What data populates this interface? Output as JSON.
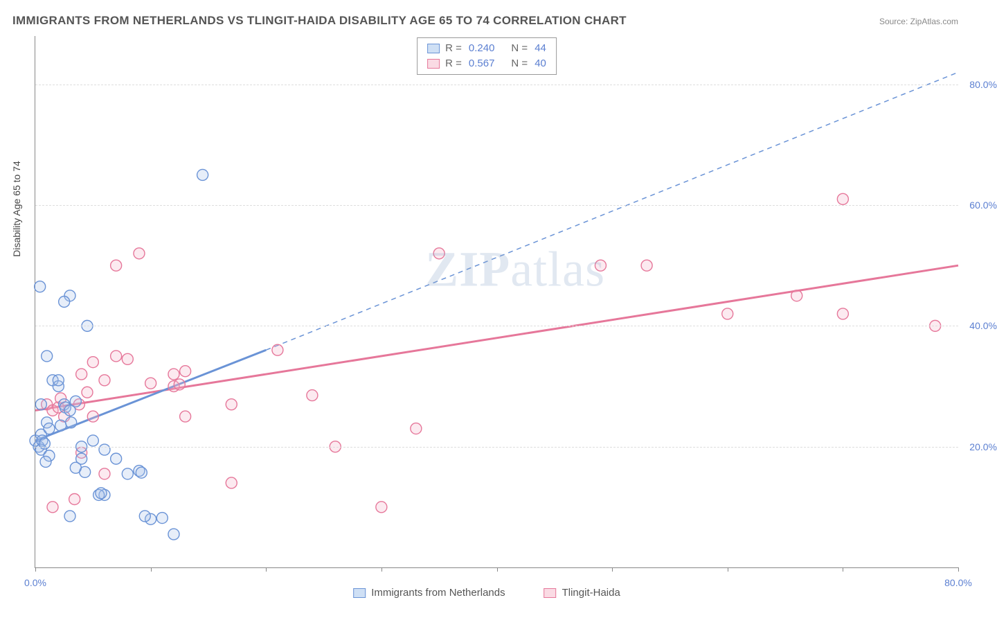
{
  "title": "IMMIGRANTS FROM NETHERLANDS VS TLINGIT-HAIDA DISABILITY AGE 65 TO 74 CORRELATION CHART",
  "source_label": "Source: ZipAtlas.com",
  "y_axis_label": "Disability Age 65 to 74",
  "watermark": {
    "zip": "ZIP",
    "atlas": "atlas"
  },
  "chart": {
    "type": "scatter",
    "xlim": [
      0,
      80
    ],
    "ylim": [
      0,
      88
    ],
    "x_ticks": [
      0,
      10,
      20,
      30,
      40,
      50,
      60,
      70,
      80
    ],
    "x_tick_labels": {
      "0": "0.0%",
      "80": "80.0%"
    },
    "y_gridlines": [
      20,
      40,
      60,
      80
    ],
    "y_tick_labels": {
      "20": "20.0%",
      "40": "40.0%",
      "60": "60.0%",
      "80": "80.0%"
    },
    "background_color": "#ffffff",
    "grid_color": "#dddddd",
    "axis_color": "#888888",
    "label_color": "#5b7fd1",
    "marker_radius": 8,
    "marker_stroke_width": 1.4,
    "marker_fill_opacity": 0.28
  },
  "series": {
    "a": {
      "label": "Immigrants from Netherlands",
      "color_stroke": "#6a93d6",
      "color_fill": "#a8c1e8",
      "swatch_fill": "#cfe0f5",
      "swatch_border": "#6a93d6",
      "r_label": "R =",
      "r_value": "0.240",
      "n_label": "N =",
      "n_value": "44",
      "points": [
        [
          0,
          21
        ],
        [
          0.3,
          20
        ],
        [
          0.5,
          22
        ],
        [
          0.6,
          21
        ],
        [
          0.5,
          19.5
        ],
        [
          0.8,
          20.5
        ],
        [
          1,
          24
        ],
        [
          1.2,
          23
        ],
        [
          1,
          35
        ],
        [
          1.5,
          31
        ],
        [
          2,
          30
        ],
        [
          2.5,
          27
        ],
        [
          2.6,
          26.5
        ],
        [
          3,
          26
        ],
        [
          3.5,
          27.5
        ],
        [
          2,
          31
        ],
        [
          0.4,
          46.5
        ],
        [
          3,
          45
        ],
        [
          4.5,
          40
        ],
        [
          2.5,
          44
        ],
        [
          14.5,
          65
        ],
        [
          4,
          18
        ],
        [
          6,
          19.5
        ],
        [
          7,
          18
        ],
        [
          5,
          21
        ],
        [
          4,
          20
        ],
        [
          9,
          16
        ],
        [
          9.2,
          15.7
        ],
        [
          4.3,
          15.8
        ],
        [
          8,
          15.5
        ],
        [
          3.5,
          16.5
        ],
        [
          6,
          12
        ],
        [
          5.5,
          12
        ],
        [
          5.7,
          12.3
        ],
        [
          3,
          8.5
        ],
        [
          10,
          8
        ],
        [
          9.5,
          8.5
        ],
        [
          11,
          8.2
        ],
        [
          12,
          5.5
        ],
        [
          1.2,
          18.5
        ],
        [
          0.9,
          17.5
        ],
        [
          2.2,
          23.5
        ],
        [
          3.1,
          24
        ],
        [
          0.5,
          27
        ]
      ],
      "trend": {
        "solid_x1": 0,
        "solid_y1": 21,
        "solid_x2": 20,
        "solid_y2": 36,
        "dash_x1": 20,
        "dash_y1": 36,
        "dash_x2": 80,
        "dash_y2": 82,
        "solid_width": 3,
        "dash_width": 1.5
      }
    },
    "b": {
      "label": "Tlingit-Haida",
      "color_stroke": "#e6779a",
      "color_fill": "#f3b3c8",
      "swatch_fill": "#fadbe4",
      "swatch_border": "#e6779a",
      "r_label": "R =",
      "r_value": "0.567",
      "n_label": "N =",
      "n_value": "40",
      "points": [
        [
          1,
          27
        ],
        [
          1.5,
          26
        ],
        [
          2,
          26.5
        ],
        [
          2.5,
          25
        ],
        [
          4,
          32
        ],
        [
          5,
          34
        ],
        [
          7,
          35
        ],
        [
          6,
          31
        ],
        [
          8,
          34.5
        ],
        [
          4.5,
          29
        ],
        [
          10,
          30.5
        ],
        [
          12,
          30
        ],
        [
          13,
          32.5
        ],
        [
          12.5,
          30.3
        ],
        [
          7,
          50
        ],
        [
          9,
          52
        ],
        [
          12,
          32
        ],
        [
          21,
          36
        ],
        [
          24,
          28.5
        ],
        [
          17,
          27
        ],
        [
          13,
          25
        ],
        [
          5,
          25
        ],
        [
          17,
          14
        ],
        [
          6,
          15.5
        ],
        [
          3.4,
          11.3
        ],
        [
          33,
          23
        ],
        [
          35,
          52
        ],
        [
          30,
          10
        ],
        [
          26,
          20
        ],
        [
          49,
          50
        ],
        [
          53,
          50
        ],
        [
          60,
          42
        ],
        [
          66,
          45
        ],
        [
          70,
          42
        ],
        [
          70,
          61
        ],
        [
          78,
          40
        ],
        [
          4,
          19
        ],
        [
          1.5,
          10
        ],
        [
          2.2,
          28
        ],
        [
          3.8,
          27
        ]
      ],
      "trend": {
        "solid_x1": 0,
        "solid_y1": 26,
        "solid_x2": 80,
        "solid_y2": 50,
        "solid_width": 3
      }
    }
  }
}
